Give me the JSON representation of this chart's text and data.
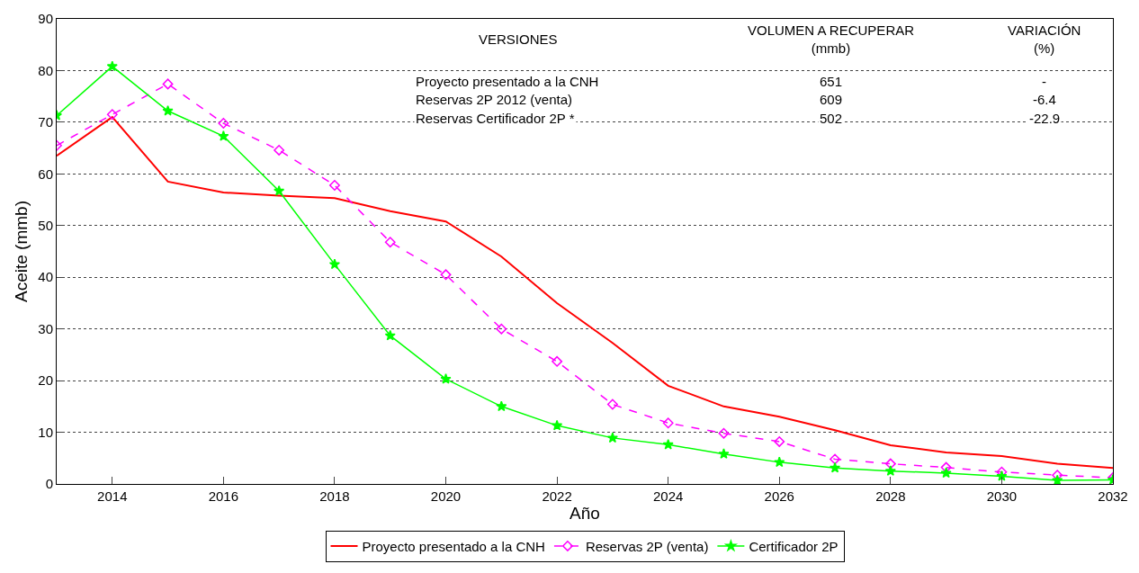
{
  "chart_data": {
    "type": "line",
    "xlabel": "Año",
    "ylabel": "Aceite (mmb)",
    "x": [
      2013,
      2014,
      2015,
      2016,
      2017,
      2018,
      2019,
      2020,
      2021,
      2022,
      2023,
      2024,
      2025,
      2026,
      2027,
      2028,
      2029,
      2030,
      2031,
      2032
    ],
    "series": [
      {
        "name": "Proyecto presentado a la CNH",
        "color": "#ff0000",
        "marker": "none",
        "line_style": "solid",
        "values": [
          63.5,
          71,
          58.5,
          56.4,
          55.8,
          55.3,
          52.8,
          50.8,
          44,
          35,
          27.3,
          19,
          15,
          13,
          10.4,
          7.5,
          6.1,
          5.4,
          3.9,
          3.1
        ]
      },
      {
        "name": "Reservas 2P (venta)",
        "color": "#ff00ff",
        "marker": "diamond",
        "line_style": "dashed",
        "values": [
          65.5,
          71.5,
          77.4,
          69.8,
          64.6,
          57.8,
          46.8,
          40.5,
          30,
          23.7,
          15.4,
          11.8,
          9.8,
          8.2,
          4.8,
          3.9,
          3.2,
          2.3,
          1.7,
          1.2
        ]
      },
      {
        "name": "Certificador 2P",
        "color": "#00ff00",
        "marker": "star",
        "line_style": "solid",
        "values": [
          71.3,
          80.8,
          72.2,
          67.3,
          56.7,
          42.5,
          28.7,
          20.3,
          15,
          11.3,
          8.9,
          7.6,
          5.8,
          4.2,
          3.1,
          2.5,
          2.1,
          1.5,
          0.7,
          0.8
        ]
      }
    ],
    "xlim": [
      2013,
      2032
    ],
    "xticks": [
      2014,
      2016,
      2018,
      2020,
      2022,
      2024,
      2026,
      2028,
      2030,
      2032
    ],
    "ylim": [
      0,
      90
    ],
    "yticks": [
      0,
      10,
      20,
      30,
      40,
      50,
      60,
      70,
      80,
      90
    ],
    "grid": "y",
    "legend": "bottom",
    "annotations": [
      "VERSIONES",
      "VOLUMEN A RECUPERAR\n(mmb)",
      "VARIACIÓN\n(%)",
      "Proyecto presentado a la CNH",
      "651",
      "-",
      "Reservas 2P 2012 (venta)",
      "609",
      "-6.4",
      "Reservas Certificador 2P *",
      "502",
      "-22.9"
    ]
  }
}
